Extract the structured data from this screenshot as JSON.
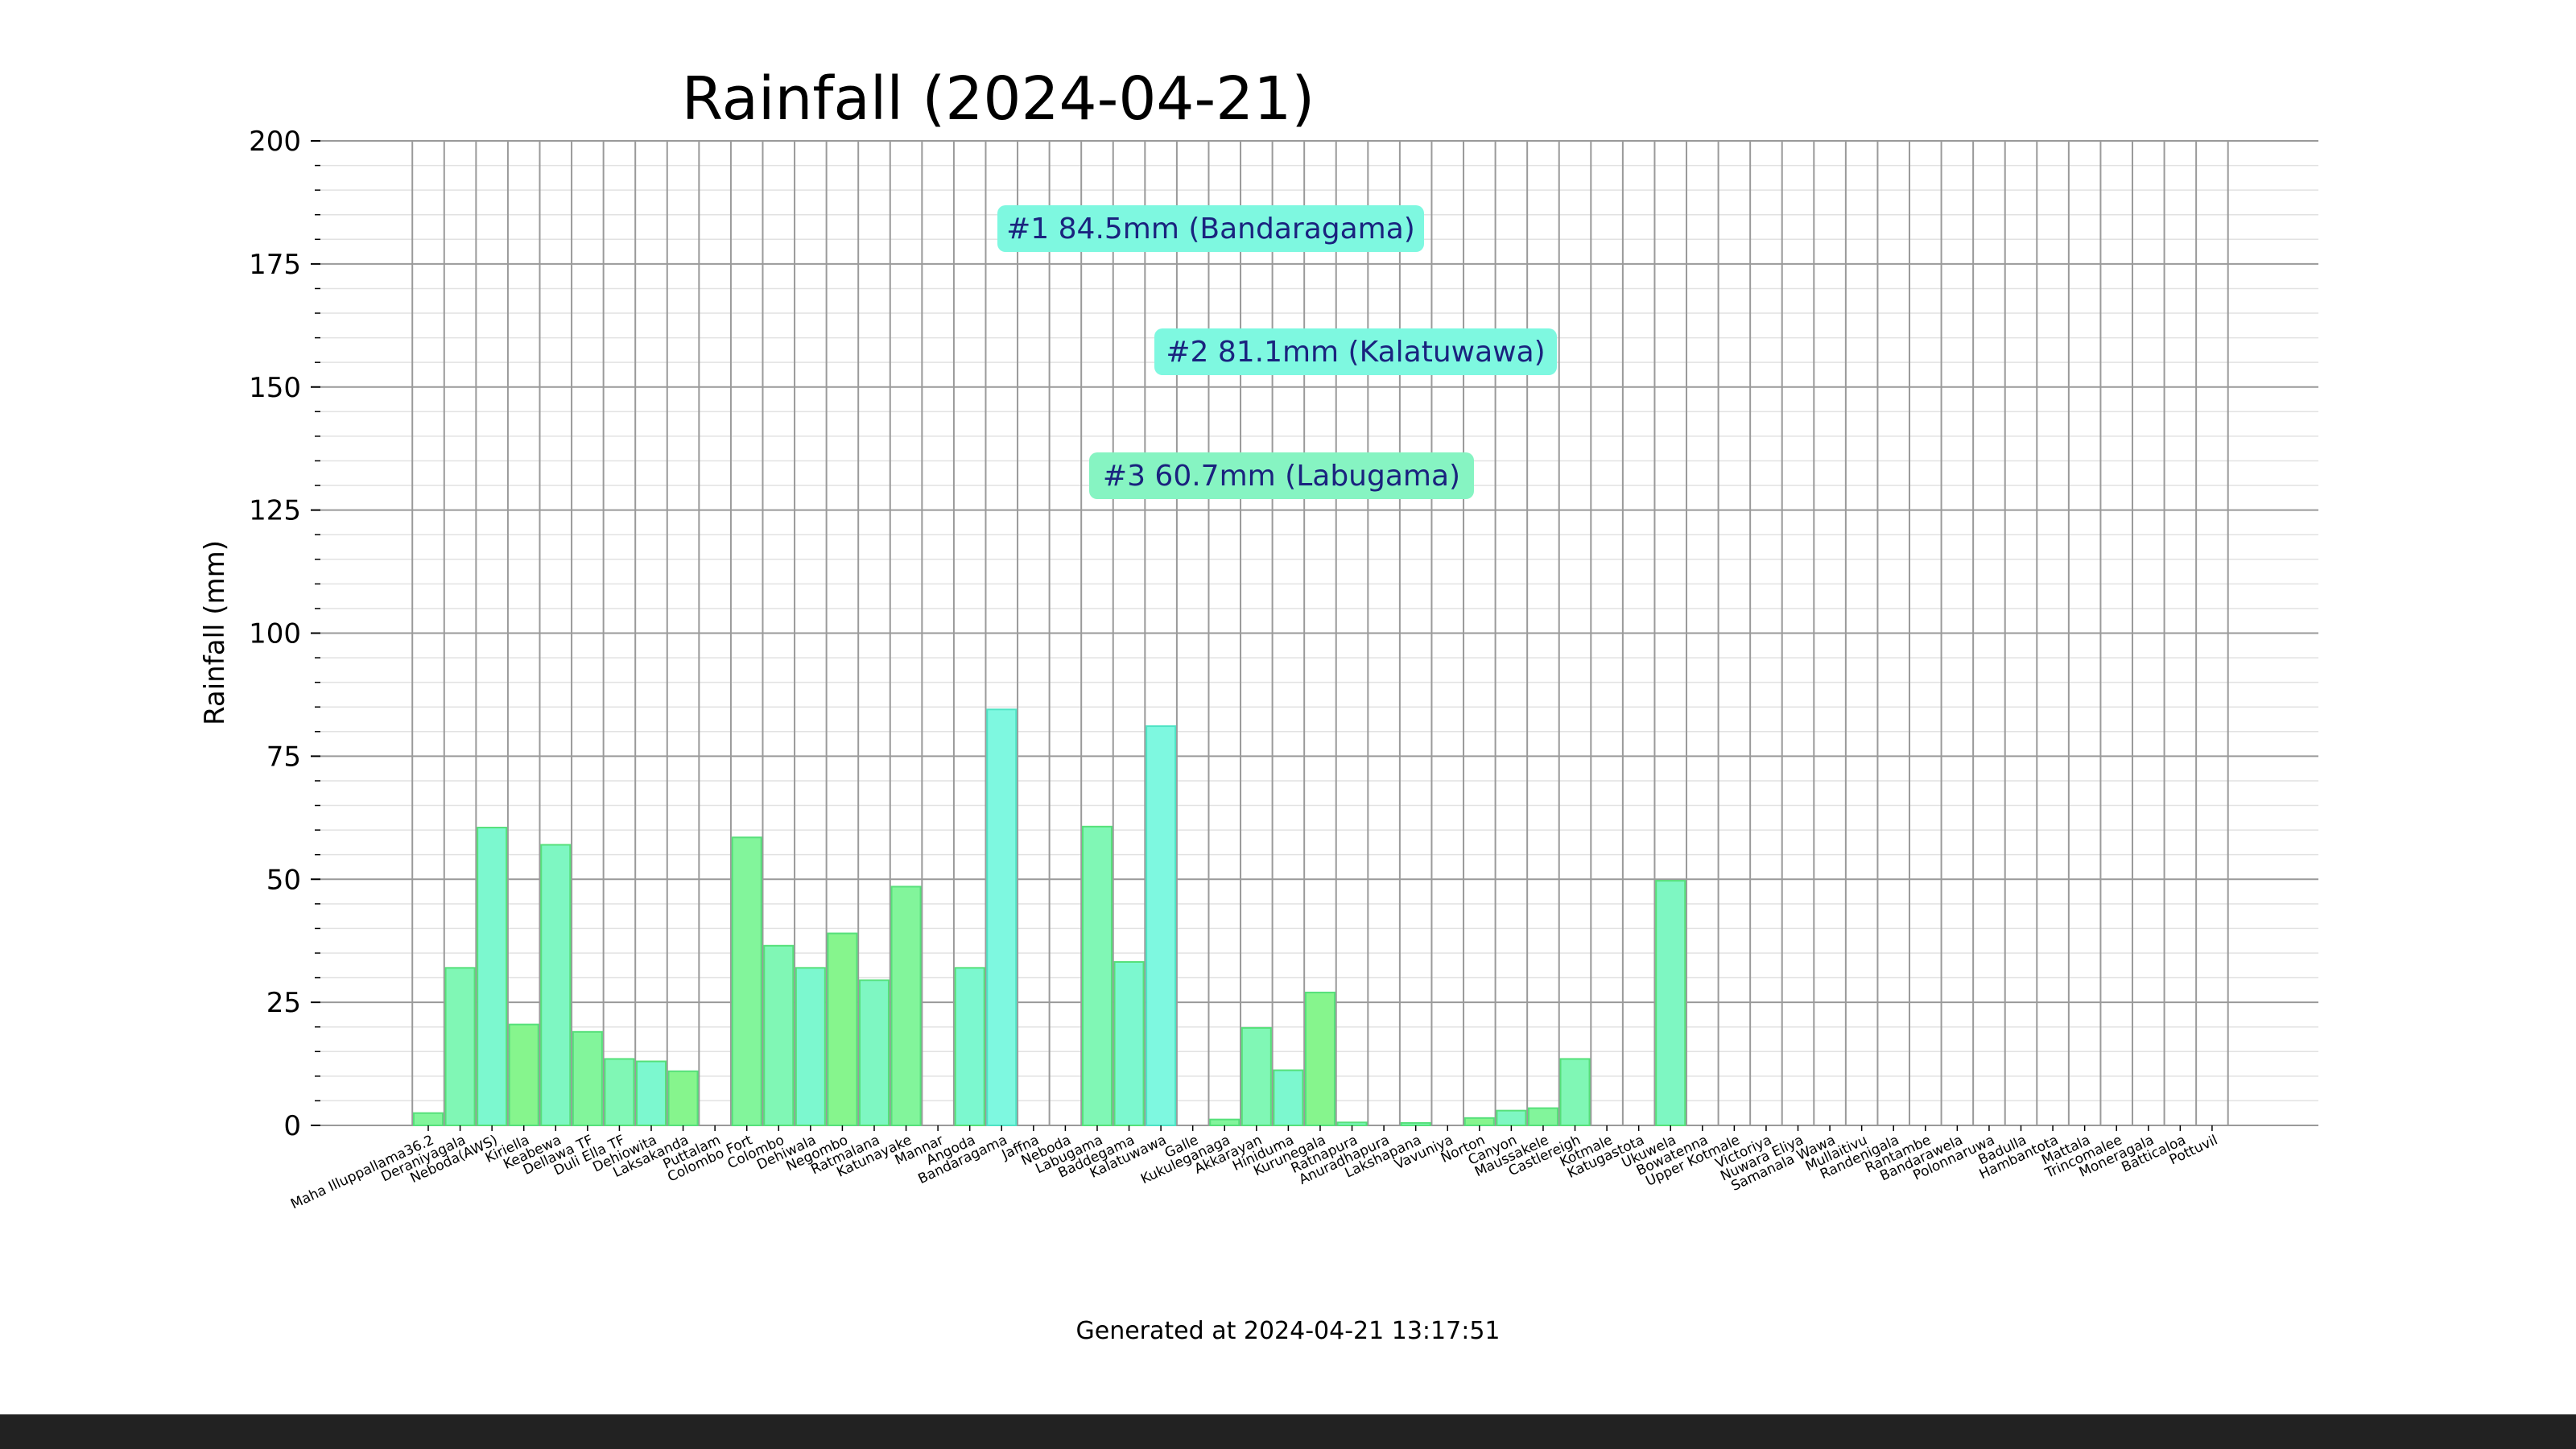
{
  "chart_data": {
    "type": "bar",
    "title": "Rainfall (2024-04-21)",
    "ylabel": "Rainfall (mm)",
    "xlabel": "",
    "ylim": [
      0,
      200
    ],
    "yticks": [
      0,
      25,
      50,
      75,
      100,
      125,
      150,
      175,
      200
    ],
    "grid": true,
    "categories": [
      "Maha Illuppallama36.2",
      "Deraniyagala",
      "Neboda(AWS)",
      "Kiriella",
      "Keabewa",
      "Dellawa TF",
      "Duli Ella TF",
      "Dehiowita",
      "Laksakanda",
      "Puttalam",
      "Colombo Fort",
      "Colombo",
      "Dehiwala",
      "Negombo",
      "Ratmalana",
      "Katunayake",
      "Mannar",
      "Angoda",
      "Bandaragama",
      "Jaffna",
      "Neboda",
      "Labugama",
      "Baddegama",
      "Kalatuwawa",
      "Galle",
      "Kukuleganaga",
      "Akkarayan",
      "Hiniduma",
      "Kurunegala",
      "Ratnapura",
      "Anuradhapura",
      "Lakshapana",
      "Vavuniya",
      "Norton",
      "Canyon",
      "Maussakele",
      "Castlereigh",
      "Kotmale",
      "Katugastota",
      "Ukuwela",
      "Bowatenna",
      "Upper Kotmale",
      "Victoriya",
      "Nuwara Eliya",
      "Samanala Wawa",
      "Mullaitivu",
      "Randenigala",
      "Rantambe",
      "Bandarawela",
      "Polonnaruwa",
      "Badulla",
      "Hambantota",
      "Mattala",
      "Trincomalee",
      "Moneragala",
      "Batticaloa",
      "Pottuvil"
    ],
    "values": [
      2.5,
      32,
      60.5,
      20.5,
      57,
      19,
      13.5,
      13,
      11,
      0,
      58.5,
      36.5,
      32,
      39,
      29.5,
      48.5,
      0,
      32,
      84.5,
      0,
      0,
      60.7,
      33.2,
      81.1,
      0,
      1.2,
      19.8,
      11.2,
      27,
      0.6,
      0,
      0.5,
      0,
      1.5,
      3,
      3.5,
      13.5,
      0,
      0,
      49.7,
      0,
      0,
      0,
      0,
      0,
      0,
      0,
      0,
      0,
      0,
      0,
      0,
      0,
      0,
      0,
      0,
      0
    ],
    "annotations": [
      {
        "text": "#1 84.5mm (Bandaragama)"
      },
      {
        "text": "#2 81.1mm (Kalatuwawa)"
      },
      {
        "text": "#3 60.7mm (Labugama)"
      }
    ]
  },
  "footer": {
    "generated": "Generated at 2024-04-21 13:17:51"
  }
}
